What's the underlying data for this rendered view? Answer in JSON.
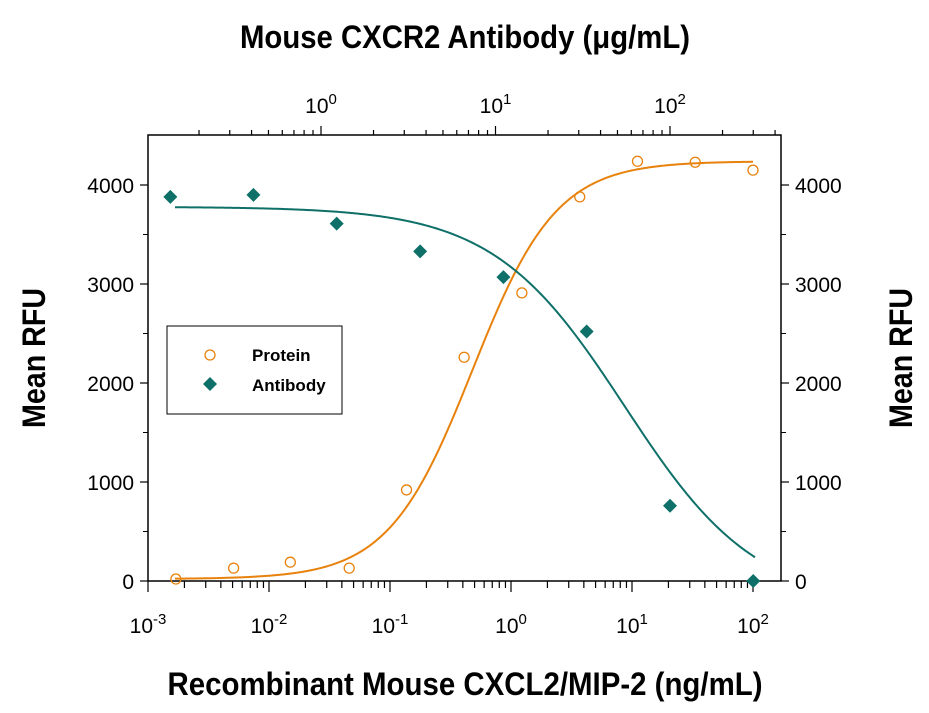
{
  "chart_data": {
    "type": "scatter",
    "title": "Mouse CXCR2 Antibody (μg/mL)",
    "xlabel": "Recombinant Mouse CXCL2/MIP-2 (ng/mL)",
    "ylabel": "Mean RFU",
    "ylabel_right": "Mean RFU",
    "x_scale": "log",
    "xlim": [
      0.001,
      175
    ],
    "x2_scale": "log",
    "x2lim": [
      0.1,
      440
    ],
    "ylim": [
      0,
      4500
    ],
    "x_ticks": [
      "10-3",
      "10-2",
      "10-1",
      "100",
      "101",
      "102"
    ],
    "x2_ticks": [
      "100",
      "101",
      "102"
    ],
    "y_ticks": [
      "0",
      "1000",
      "2000",
      "3000",
      "4000"
    ],
    "legend_position": "center-left",
    "grid": false,
    "series": [
      {
        "name": "Protein",
        "axis": "bottom",
        "marker": "open-circle",
        "color": "#e8820c",
        "x": [
          0.0017,
          0.0051,
          0.015,
          0.046,
          0.137,
          0.41,
          1.23,
          3.7,
          11.1,
          33.3,
          100
        ],
        "y": [
          20,
          130,
          190,
          130,
          920,
          2260,
          2910,
          3880,
          4240,
          4230,
          4150
        ]
      },
      {
        "name": "Antibody",
        "axis": "top",
        "marker": "filled-diamond",
        "color": "#0e7068",
        "x": [
          0.137,
          0.41,
          1.23,
          3.7,
          11.1,
          33.3,
          100,
          300
        ],
        "y": [
          3880,
          3900,
          3610,
          3330,
          3070,
          2520,
          760,
          0
        ]
      }
    ]
  }
}
